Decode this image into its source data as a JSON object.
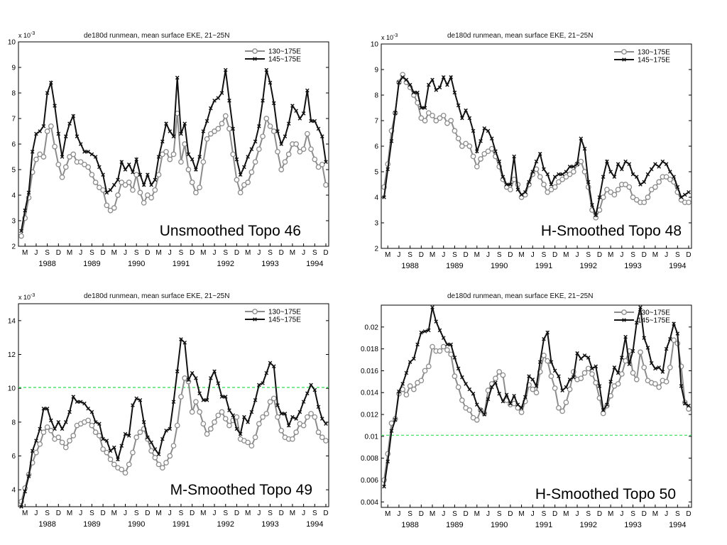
{
  "chart_data": [
    {
      "type": "line",
      "title": "de180d runmean, mean surface EKE, 21~25N",
      "caption": "Unsmoothed Topo 46",
      "y_multiplier": "x 10",
      "y_exponent": "-3",
      "ylim": [
        2,
        10
      ],
      "yticks": [
        2,
        3,
        4,
        5,
        6,
        7,
        8,
        9,
        10
      ],
      "ytick_labels": [
        "2",
        "3",
        "4",
        "5",
        "6",
        "7",
        "8",
        "9",
        "10"
      ],
      "month_ticks": [
        "M",
        "J",
        "S",
        "D",
        "M",
        "J",
        "S",
        "D",
        "M",
        "J",
        "S",
        "D",
        "M",
        "J",
        "S",
        "D",
        "M",
        "J",
        "S",
        "D",
        "M",
        "J",
        "S",
        "D",
        "M",
        "J",
        "S",
        "D"
      ],
      "years": [
        "1988",
        "1989",
        "1990",
        "1991",
        "1992",
        "1993",
        "1994"
      ],
      "reference_line": null,
      "series": [
        {
          "name": "130~175E",
          "color": "#8c8c8c",
          "marker": "circle",
          "values": [
            2.4,
            3.1,
            3.9,
            4.9,
            5.4,
            5.6,
            5.5,
            6.5,
            6.7,
            5.9,
            5.2,
            4.7,
            5.1,
            5.5,
            5.6,
            5.3,
            5.3,
            5.2,
            5.1,
            4.8,
            4.5,
            4.3,
            4.2,
            3.6,
            3.4,
            3.5,
            4.0,
            4.5,
            4.4,
            4.5,
            4.2,
            4.8,
            4.1,
            3.7,
            4.0,
            3.9,
            4.2,
            4.8,
            5.6,
            5.7,
            5.4,
            5.6,
            7.2,
            5.3,
            6.0,
            5.0,
            4.5,
            4.1,
            4.3,
            5.3,
            6.2,
            6.4,
            6.5,
            6.6,
            6.8,
            7.1,
            6.6,
            5.6,
            4.6,
            4.1,
            4.4,
            4.5,
            4.9,
            5.3,
            5.8,
            6.3,
            7.0,
            6.7,
            6.5,
            5.7,
            5.0,
            5.3,
            5.6,
            6.0,
            6.0,
            5.7,
            5.8,
            6.4,
            5.8,
            5.4,
            5.1,
            5.2,
            4.4
          ]
        },
        {
          "name": "145~175E",
          "color": "#111111",
          "marker": "x",
          "values": [
            2.6,
            3.4,
            4.1,
            5.7,
            6.4,
            6.5,
            6.7,
            8.0,
            8.4,
            7.5,
            6.4,
            5.5,
            6.3,
            6.8,
            7.1,
            6.3,
            6.0,
            5.7,
            5.7,
            5.6,
            5.5,
            5.1,
            4.8,
            4.1,
            4.2,
            4.4,
            4.6,
            5.3,
            5.0,
            5.2,
            4.9,
            5.4,
            4.8,
            4.4,
            4.8,
            4.4,
            4.6,
            5.5,
            6.1,
            6.8,
            6.5,
            6.3,
            8.6,
            6.4,
            6.8,
            5.6,
            5.4,
            5.0,
            5.5,
            6.5,
            6.9,
            7.4,
            7.7,
            7.8,
            8.0,
            8.9,
            7.7,
            6.6,
            5.4,
            4.8,
            5.1,
            5.5,
            5.8,
            6.1,
            6.7,
            7.7,
            8.9,
            8.4,
            7.6,
            6.5,
            6.0,
            6.3,
            6.8,
            7.5,
            7.3,
            7.0,
            7.2,
            8.1,
            6.9,
            6.9,
            6.6,
            6.3,
            5.3
          ]
        }
      ]
    },
    {
      "type": "line",
      "title": "de180d runmean, mean surface EKE, 21~25N",
      "caption": "H-Smoothed Topo 48",
      "y_multiplier": "x 10",
      "y_exponent": "-3",
      "ylim": [
        2,
        10
      ],
      "yticks": [
        2,
        3,
        4,
        5,
        6,
        7,
        8,
        9,
        10
      ],
      "ytick_labels": [
        "2",
        "3",
        "4",
        "5",
        "6",
        "7",
        "8",
        "9",
        "10"
      ],
      "month_ticks": [
        "M",
        "J",
        "S",
        "D",
        "M",
        "J",
        "S",
        "D",
        "M",
        "J",
        "S",
        "D",
        "M",
        "J",
        "S",
        "D",
        "M",
        "J",
        "S",
        "D",
        "M",
        "J",
        "S",
        "D",
        "M",
        "J",
        "S",
        "D"
      ],
      "years": [
        "1988",
        "1989",
        "1990",
        "1991",
        "1992",
        "1993",
        "1994"
      ],
      "reference_line": null,
      "series": [
        {
          "name": "130~175E",
          "color": "#8c8c8c",
          "marker": "circle",
          "values": [
            4.4,
            5.3,
            6.6,
            7.3,
            8.5,
            8.8,
            8.5,
            8.3,
            8.0,
            7.7,
            7.1,
            7.0,
            7.3,
            7.2,
            7.0,
            7.1,
            7.2,
            6.9,
            7.0,
            6.6,
            6.3,
            6.0,
            6.1,
            6.0,
            5.6,
            5.2,
            5.5,
            5.7,
            5.8,
            5.9,
            5.6,
            5.2,
            4.7,
            4.4,
            4.3,
            4.7,
            4.5,
            4.0,
            4.1,
            4.5,
            4.9,
            5.1,
            4.8,
            4.5,
            4.2,
            4.3,
            4.4,
            4.6,
            4.7,
            4.8,
            4.9,
            5.0,
            5.3,
            5.4,
            5.0,
            4.4,
            3.5,
            3.2,
            3.5,
            4.0,
            4.3,
            4.2,
            4.1,
            4.3,
            4.5,
            4.5,
            4.4,
            4.0,
            3.9,
            3.8,
            3.8,
            4.0,
            4.3,
            4.4,
            4.6,
            4.8,
            4.8,
            4.7,
            4.6,
            4.2,
            3.9,
            3.8,
            3.8
          ]
        },
        {
          "name": "145~175E",
          "color": "#111111",
          "marker": "x",
          "values": [
            4.0,
            5.1,
            6.2,
            7.3,
            8.5,
            8.7,
            8.6,
            8.4,
            8.1,
            8.1,
            7.5,
            7.5,
            8.4,
            8.6,
            8.2,
            8.3,
            8.7,
            8.4,
            8.7,
            8.1,
            7.6,
            7.1,
            7.4,
            7.1,
            6.6,
            5.8,
            6.2,
            6.7,
            6.6,
            6.3,
            5.8,
            5.4,
            4.8,
            4.5,
            4.5,
            5.6,
            4.3,
            4.1,
            4.2,
            4.6,
            5.0,
            5.4,
            5.7,
            5.1,
            4.9,
            4.5,
            4.8,
            4.9,
            4.9,
            5.0,
            5.2,
            5.2,
            5.3,
            6.3,
            5.9,
            4.6,
            3.7,
            3.3,
            4.0,
            4.8,
            5.4,
            5.0,
            4.8,
            5.3,
            5.1,
            5.4,
            5.3,
            4.9,
            4.8,
            4.5,
            4.6,
            4.9,
            5.1,
            5.3,
            5.2,
            5.4,
            5.3,
            5.0,
            4.8,
            4.4,
            4.0,
            4.1,
            4.2
          ]
        }
      ]
    },
    {
      "type": "line",
      "title": "de180d runmean, mean surface EKE, 21~25N",
      "caption": "M-Smoothed Topo 49",
      "y_multiplier": "x 10",
      "y_exponent": "-3",
      "ylim": [
        3,
        15
      ],
      "yticks": [
        4,
        6,
        8,
        10,
        12,
        14
      ],
      "ytick_labels": [
        "4",
        "6",
        "8",
        "10",
        "12",
        "14"
      ],
      "month_ticks": [
        "M",
        "J",
        "S",
        "D",
        "M",
        "J",
        "S",
        "D",
        "M",
        "J",
        "S",
        "D",
        "M",
        "J",
        "S",
        "D",
        "M",
        "J",
        "S",
        "D",
        "M",
        "J",
        "S",
        "D",
        "M",
        "J",
        "S",
        "D"
      ],
      "years": [
        "1988",
        "1989",
        "1990",
        "1991",
        "1992",
        "1993",
        "1994"
      ],
      "reference_line": {
        "y": 10.05,
        "color": "#33dd55",
        "dashed": true
      },
      "series": [
        {
          "name": "130~175E",
          "color": "#8c8c8c",
          "marker": "circle",
          "values": [
            3.3,
            4.1,
            4.9,
            5.6,
            6.2,
            6.7,
            7.4,
            7.7,
            7.5,
            7.0,
            7.1,
            6.8,
            6.5,
            6.9,
            7.2,
            7.8,
            7.9,
            8.0,
            8.1,
            7.8,
            7.4,
            7.2,
            6.4,
            6.2,
            5.8,
            5.5,
            5.3,
            5.2,
            5.0,
            5.5,
            6.2,
            7.1,
            7.4,
            7.6,
            7.0,
            6.3,
            5.9,
            5.5,
            5.3,
            5.6,
            6.0,
            6.6,
            7.8,
            9.5,
            10.6,
            10.4,
            8.6,
            9.2,
            8.6,
            7.9,
            7.3,
            7.6,
            8.0,
            8.4,
            8.6,
            8.2,
            7.8,
            8.1,
            8.3,
            7.0,
            6.9,
            6.8,
            6.6,
            7.1,
            7.9,
            8.3,
            8.5,
            9.2,
            9.4,
            8.3,
            7.5,
            7.1,
            7.0,
            7.0,
            7.4,
            7.9,
            7.8,
            8.3,
            8.5,
            8.3,
            7.4,
            7.1,
            6.9
          ]
        },
        {
          "name": "145~175E",
          "color": "#111111",
          "marker": "x",
          "values": [
            3.0,
            3.9,
            4.8,
            6.3,
            6.9,
            7.6,
            8.8,
            8.8,
            8.1,
            7.6,
            8.0,
            7.6,
            8.0,
            8.6,
            9.5,
            9.2,
            9.2,
            9.1,
            8.8,
            8.6,
            8.0,
            7.9,
            7.0,
            6.9,
            6.3,
            6.5,
            5.8,
            6.6,
            7.3,
            7.2,
            9.0,
            9.4,
            9.3,
            8.0,
            7.1,
            6.8,
            6.4,
            6.1,
            7.0,
            7.5,
            7.6,
            9.2,
            11.0,
            12.9,
            12.7,
            10.5,
            10.9,
            10.6,
            9.7,
            9.3,
            9.3,
            10.6,
            11.0,
            10.3,
            9.5,
            9.5,
            8.7,
            8.4,
            7.6,
            7.3,
            8.3,
            8.0,
            8.6,
            9.3,
            10.2,
            10.3,
            10.9,
            11.5,
            11.3,
            9.0,
            8.5,
            8.5,
            7.8,
            8.3,
            8.2,
            8.6,
            9.2,
            9.7,
            10.2,
            9.9,
            8.9,
            8.2,
            7.9
          ]
        }
      ]
    },
    {
      "type": "line",
      "title": "de180d runmean, mean surface EKE, 21~25N",
      "caption": "H-Smoothed Topo 50",
      "y_multiplier": "",
      "y_exponent": "",
      "ylim": [
        0.0035,
        0.022
      ],
      "yticks": [
        0.004,
        0.006,
        0.008,
        0.01,
        0.012,
        0.014,
        0.016,
        0.018,
        0.02
      ],
      "ytick_labels": [
        "0.004",
        "0.006",
        "0.008",
        "0.01",
        "0.012",
        "0.014",
        "0.016",
        "0.018",
        "0.02"
      ],
      "month_ticks": [
        "M",
        "J",
        "S",
        "D",
        "M",
        "J",
        "S",
        "D",
        "M",
        "J",
        "S",
        "D",
        "M",
        "J",
        "S",
        "D",
        "M",
        "J",
        "S",
        "D",
        "M",
        "J",
        "S",
        "D",
        "M",
        "J",
        "S",
        "D"
      ],
      "years": [
        "1988",
        "1989",
        "1990",
        "1991",
        "1992",
        "1993",
        "1994"
      ],
      "reference_line": {
        "y": 0.0101,
        "color": "#33dd55",
        "dashed": true
      },
      "series": [
        {
          "name": "130~175E",
          "color": "#8c8c8c",
          "marker": "circle",
          "values": [
            0.006,
            0.0084,
            0.0112,
            0.0116,
            0.0139,
            0.0143,
            0.0138,
            0.0146,
            0.0143,
            0.0149,
            0.0151,
            0.016,
            0.0164,
            0.0182,
            0.0178,
            0.0178,
            0.0182,
            0.0179,
            0.0175,
            0.0155,
            0.0145,
            0.0133,
            0.0126,
            0.0124,
            0.0117,
            0.0115,
            0.0124,
            0.0121,
            0.0142,
            0.0148,
            0.0153,
            0.0159,
            0.0156,
            0.0133,
            0.0129,
            0.013,
            0.0126,
            0.0122,
            0.0132,
            0.0147,
            0.0143,
            0.014,
            0.0159,
            0.0174,
            0.0169,
            0.0155,
            0.0144,
            0.0126,
            0.0123,
            0.0131,
            0.0143,
            0.0159,
            0.0152,
            0.0153,
            0.0158,
            0.0162,
            0.0157,
            0.0149,
            0.0135,
            0.0121,
            0.0128,
            0.0137,
            0.0146,
            0.0148,
            0.0157,
            0.0169,
            0.0178,
            0.0158,
            0.0152,
            0.0177,
            0.0163,
            0.0151,
            0.0149,
            0.0148,
            0.0145,
            0.0151,
            0.015,
            0.0163,
            0.0188,
            0.0185,
            0.0164,
            0.0131,
            0.0125
          ]
        },
        {
          "name": "145~175E",
          "color": "#111111",
          "marker": "x",
          "values": [
            0.0054,
            0.0077,
            0.0105,
            0.0115,
            0.0141,
            0.0148,
            0.0158,
            0.0168,
            0.0171,
            0.0184,
            0.0195,
            0.0196,
            0.0197,
            0.0218,
            0.0205,
            0.0197,
            0.019,
            0.0184,
            0.0184,
            0.0172,
            0.0162,
            0.0154,
            0.0148,
            0.0143,
            0.0139,
            0.0129,
            0.0124,
            0.012,
            0.0134,
            0.0145,
            0.0149,
            0.0139,
            0.0132,
            0.0138,
            0.013,
            0.0137,
            0.0129,
            0.0126,
            0.0136,
            0.0155,
            0.0152,
            0.0146,
            0.0168,
            0.0189,
            0.0195,
            0.0168,
            0.016,
            0.0155,
            0.0142,
            0.0145,
            0.0152,
            0.0154,
            0.0176,
            0.0171,
            0.0174,
            0.0172,
            0.0162,
            0.0164,
            0.0146,
            0.0124,
            0.0129,
            0.015,
            0.0163,
            0.0158,
            0.0172,
            0.0191,
            0.0166,
            0.0178,
            0.0204,
            0.0218,
            0.019,
            0.0181,
            0.0167,
            0.0162,
            0.0163,
            0.0159,
            0.018,
            0.0189,
            0.0203,
            0.0194,
            0.0146,
            0.013,
            0.0128
          ]
        }
      ]
    }
  ]
}
